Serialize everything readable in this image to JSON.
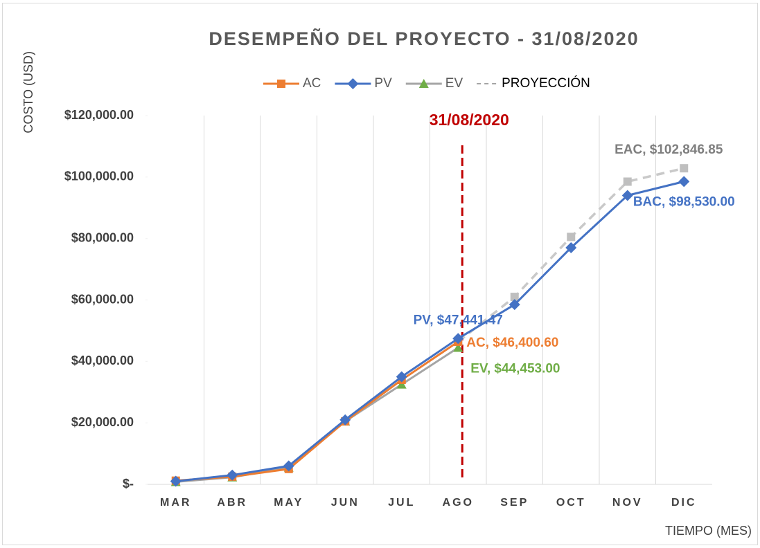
{
  "chart_data": {
    "type": "line",
    "title": "DESEMPEÑO DEL PROYECTO - 31/08/2020",
    "y_label": "COSTO (USD)",
    "x_label": "TIEMPO (MES)",
    "categories": [
      "MAR",
      "ABR",
      "MAY",
      "JUN",
      "JUL",
      "AGO",
      "SEP",
      "OCT",
      "NOV",
      "DIC"
    ],
    "ylim": [
      0,
      120000
    ],
    "yticks": [
      {
        "value": 0,
        "label": "$-"
      },
      {
        "value": 20000,
        "label": "$20,000.00"
      },
      {
        "value": 40000,
        "label": "$40,000.00"
      },
      {
        "value": 60000,
        "label": "$60,000.00"
      },
      {
        "value": 80000,
        "label": "$80,000.00"
      },
      {
        "value": 100000,
        "label": "$100,000.00"
      },
      {
        "value": 120000,
        "label": "$120,000.00"
      }
    ],
    "grid": false,
    "vertical_grid": true,
    "cutoff": {
      "category": "AGO",
      "label": "31/08/2020",
      "color": "#c00000"
    },
    "series": [
      {
        "name": "PROYECCIÓN",
        "color": "#c9c9c9",
        "marker_color": "#bfbfbf",
        "marker": "square",
        "dashed": true,
        "label_color": "#7f7f7f",
        "values": [
          null,
          null,
          null,
          null,
          null,
          46400.6,
          61000,
          80500,
          98500,
          102846.85
        ],
        "value_labels": [
          null,
          null,
          null,
          null,
          null,
          null,
          null,
          null,
          null,
          "EAC,  $102,846.85"
        ]
      },
      {
        "name": "EV",
        "color": "#a5a5a5",
        "marker_color": "#70ad47",
        "marker": "triangle",
        "dashed": false,
        "label_color": "#70ad47",
        "values": [
          800,
          2300,
          5500,
          20500,
          32500,
          44453.0,
          null,
          null,
          null,
          null
        ],
        "value_labels": [
          null,
          null,
          null,
          null,
          null,
          "EV,  $44,453.00",
          null,
          null,
          null,
          null
        ]
      },
      {
        "name": "AC",
        "color": "#ed7d31",
        "marker_color": "#ed7d31",
        "marker": "square",
        "dashed": false,
        "label_color": "#ed7d31",
        "values": [
          1200,
          2500,
          5000,
          20500,
          34000,
          46400.6,
          null,
          null,
          null,
          null
        ],
        "value_labels": [
          null,
          null,
          null,
          null,
          null,
          "AC,  $46,400.60",
          null,
          null,
          null,
          null
        ]
      },
      {
        "name": "PV",
        "color": "#4472c4",
        "marker_color": "#4472c4",
        "marker": "diamond",
        "dashed": false,
        "label_color": "#4472c4",
        "values": [
          1000,
          3000,
          6000,
          21000,
          35000,
          47441.47,
          58500,
          77000,
          94000,
          98530.0
        ],
        "value_labels": [
          null,
          null,
          null,
          null,
          null,
          "PV,  $47,441.47",
          null,
          null,
          null,
          "BAC,  $98,530.00"
        ]
      }
    ],
    "legend_order": [
      "AC",
      "PV",
      "EV",
      "PROYECCIÓN"
    ]
  }
}
